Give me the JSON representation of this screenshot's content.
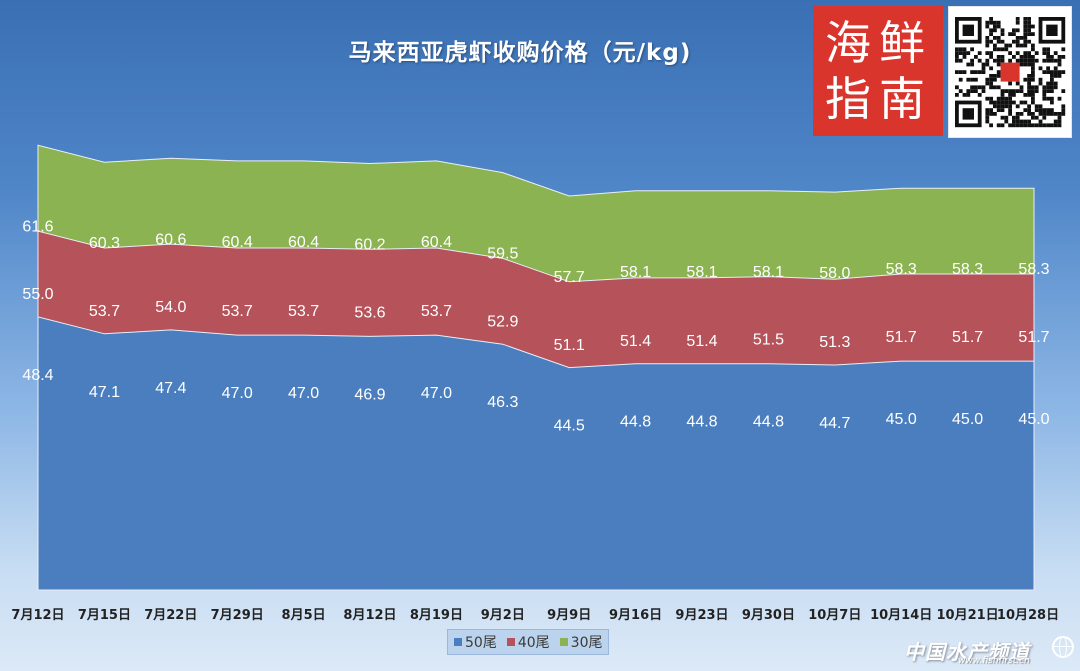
{
  "chart_data": {
    "type": "area",
    "stacked": false,
    "title": "马来西亚虎虾收购价格（元/kg)",
    "categories": [
      "7月12日",
      "7月15日",
      "7月22日",
      "7月29日",
      "8月5日",
      "8月12日",
      "8月19日",
      "9月2日",
      "9月9日",
      "9月16日",
      "9月23日",
      "9月30日",
      "10月7日",
      "10月14日",
      "10月21日",
      "10月28日"
    ],
    "series": [
      {
        "name": "50尾",
        "color": "#4a7ebf",
        "values": [
          48.4,
          47.1,
          47.4,
          47.0,
          47.0,
          46.9,
          47.0,
          46.3,
          44.5,
          44.8,
          44.8,
          44.8,
          44.7,
          45.0,
          45.0,
          45.0
        ]
      },
      {
        "name": "40尾",
        "color": "#b5525a",
        "values": [
          55.0,
          53.7,
          54.0,
          53.7,
          53.7,
          53.6,
          53.7,
          52.9,
          51.1,
          51.4,
          51.4,
          51.5,
          51.3,
          51.7,
          51.7,
          51.7
        ]
      },
      {
        "name": "30尾",
        "color": "#8cb352",
        "values": [
          61.6,
          60.3,
          60.6,
          60.4,
          60.4,
          60.2,
          60.4,
          59.5,
          57.7,
          58.1,
          58.1,
          58.1,
          58.0,
          58.3,
          58.3,
          58.3
        ]
      }
    ],
    "legend_position": "bottom",
    "grid": false,
    "data_labels": true
  },
  "logo": {
    "text": "海鲜指南",
    "chars": [
      "海",
      "鲜",
      "指",
      "南"
    ]
  },
  "watermark": {
    "text": "中国水产频道",
    "url": "www.fishfirst.cn"
  }
}
